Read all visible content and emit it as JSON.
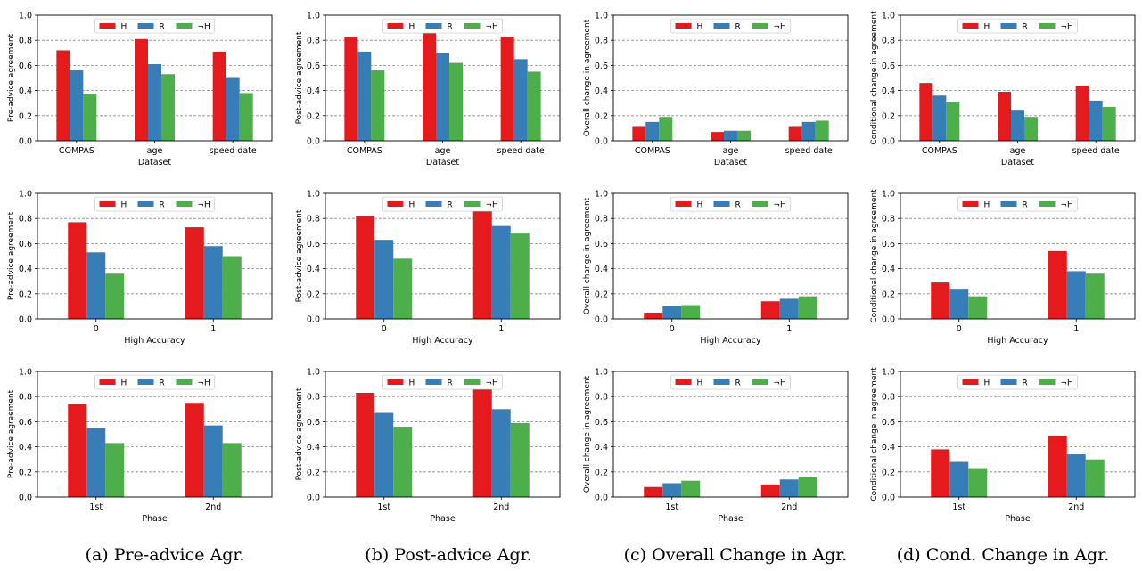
{
  "colors": {
    "H": "#e41a1c",
    "R": "#377eb8",
    "notH": "#4daf4a"
  },
  "legend": [
    "H",
    "R",
    "¬H"
  ],
  "captions": [
    "(a) Pre-advice Agr.",
    "(b) Post-advice Agr.",
    "(c) Overall Change in Agr.",
    "(d) Cond. Change in Agr."
  ],
  "chart_data": [
    {
      "type": "bar",
      "ylabel": "Pre-advice agreement",
      "xlabel": "Dataset",
      "categories": [
        "COMPAS",
        "age",
        "speed date"
      ],
      "ylim": [
        0,
        1
      ],
      "grid": true,
      "legend_position": "top-center",
      "series": [
        {
          "name": "H",
          "values": [
            0.72,
            0.81,
            0.71
          ]
        },
        {
          "name": "R",
          "values": [
            0.56,
            0.61,
            0.5
          ]
        },
        {
          "name": "¬H",
          "values": [
            0.37,
            0.53,
            0.38
          ]
        }
      ]
    },
    {
      "type": "bar",
      "ylabel": "Post-advice agreement",
      "xlabel": "Dataset",
      "categories": [
        "COMPAS",
        "age",
        "speed date"
      ],
      "ylim": [
        0,
        1
      ],
      "grid": true,
      "legend_position": "top-center",
      "series": [
        {
          "name": "H",
          "values": [
            0.83,
            0.88,
            0.83
          ]
        },
        {
          "name": "R",
          "values": [
            0.71,
            0.7,
            0.65
          ]
        },
        {
          "name": "¬H",
          "values": [
            0.56,
            0.62,
            0.55
          ]
        }
      ]
    },
    {
      "type": "bar",
      "ylabel": "Overall change in agreement",
      "xlabel": "Dataset",
      "categories": [
        "COMPAS",
        "age",
        "speed date"
      ],
      "ylim": [
        0,
        1
      ],
      "grid": true,
      "legend_position": "top-center",
      "series": [
        {
          "name": "H",
          "values": [
            0.11,
            0.07,
            0.11
          ]
        },
        {
          "name": "R",
          "values": [
            0.15,
            0.08,
            0.15
          ]
        },
        {
          "name": "¬H",
          "values": [
            0.19,
            0.08,
            0.16
          ]
        }
      ]
    },
    {
      "type": "bar",
      "ylabel": "Conditional change in agreement",
      "xlabel": "Dataset",
      "categories": [
        "COMPAS",
        "age",
        "speed date"
      ],
      "ylim": [
        0,
        1
      ],
      "grid": true,
      "legend_position": "top-center",
      "series": [
        {
          "name": "H",
          "values": [
            0.46,
            0.39,
            0.44
          ]
        },
        {
          "name": "R",
          "values": [
            0.36,
            0.24,
            0.32
          ]
        },
        {
          "name": "¬H",
          "values": [
            0.31,
            0.19,
            0.27
          ]
        }
      ]
    },
    {
      "type": "bar",
      "ylabel": "Pre-advice agreement",
      "xlabel": "High Accuracy",
      "categories": [
        "0",
        "1"
      ],
      "ylim": [
        0,
        1
      ],
      "grid": true,
      "legend_position": "top-center",
      "series": [
        {
          "name": "H",
          "values": [
            0.77,
            0.73
          ]
        },
        {
          "name": "R",
          "values": [
            0.53,
            0.58
          ]
        },
        {
          "name": "¬H",
          "values": [
            0.36,
            0.5
          ]
        }
      ]
    },
    {
      "type": "bar",
      "ylabel": "Post-advice agreement",
      "xlabel": "High Accuracy",
      "categories": [
        "0",
        "1"
      ],
      "ylim": [
        0,
        1
      ],
      "grid": true,
      "legend_position": "top-center",
      "series": [
        {
          "name": "H",
          "values": [
            0.82,
            0.86
          ]
        },
        {
          "name": "R",
          "values": [
            0.63,
            0.74
          ]
        },
        {
          "name": "¬H",
          "values": [
            0.48,
            0.68
          ]
        }
      ]
    },
    {
      "type": "bar",
      "ylabel": "Overall change in agreement",
      "xlabel": "High Accuracy",
      "categories": [
        "0",
        "1"
      ],
      "ylim": [
        0,
        1
      ],
      "grid": true,
      "legend_position": "top-center",
      "series": [
        {
          "name": "H",
          "values": [
            0.05,
            0.14
          ]
        },
        {
          "name": "R",
          "values": [
            0.1,
            0.16
          ]
        },
        {
          "name": "¬H",
          "values": [
            0.11,
            0.18
          ]
        }
      ]
    },
    {
      "type": "bar",
      "ylabel": "Conditional change in agreement",
      "xlabel": "High Accuracy",
      "categories": [
        "0",
        "1"
      ],
      "ylim": [
        0,
        1
      ],
      "grid": true,
      "legend_position": "top-center",
      "series": [
        {
          "name": "H",
          "values": [
            0.29,
            0.54
          ]
        },
        {
          "name": "R",
          "values": [
            0.24,
            0.38
          ]
        },
        {
          "name": "¬H",
          "values": [
            0.18,
            0.36
          ]
        }
      ]
    },
    {
      "type": "bar",
      "ylabel": "Pre-advice agreement",
      "xlabel": "Phase",
      "categories": [
        "1st",
        "2nd"
      ],
      "ylim": [
        0,
        1
      ],
      "grid": true,
      "legend_position": "top-center",
      "series": [
        {
          "name": "H",
          "values": [
            0.74,
            0.75
          ]
        },
        {
          "name": "R",
          "values": [
            0.55,
            0.57
          ]
        },
        {
          "name": "¬H",
          "values": [
            0.43,
            0.43
          ]
        }
      ]
    },
    {
      "type": "bar",
      "ylabel": "Post-advice agreement",
      "xlabel": "Phase",
      "categories": [
        "1st",
        "2nd"
      ],
      "ylim": [
        0,
        1
      ],
      "grid": true,
      "legend_position": "top-center",
      "series": [
        {
          "name": "H",
          "values": [
            0.83,
            0.86
          ]
        },
        {
          "name": "R",
          "values": [
            0.67,
            0.7
          ]
        },
        {
          "name": "¬H",
          "values": [
            0.56,
            0.59
          ]
        }
      ]
    },
    {
      "type": "bar",
      "ylabel": "Overall change in agreement",
      "xlabel": "Phase",
      "categories": [
        "1st",
        "2nd"
      ],
      "ylim": [
        0,
        1
      ],
      "grid": true,
      "legend_position": "top-center",
      "series": [
        {
          "name": "H",
          "values": [
            0.08,
            0.1
          ]
        },
        {
          "name": "R",
          "values": [
            0.11,
            0.14
          ]
        },
        {
          "name": "¬H",
          "values": [
            0.13,
            0.16
          ]
        }
      ]
    },
    {
      "type": "bar",
      "ylabel": "Conditional change in agreement",
      "xlabel": "Phase",
      "categories": [
        "1st",
        "2nd"
      ],
      "ylim": [
        0,
        1
      ],
      "grid": true,
      "legend_position": "top-center",
      "series": [
        {
          "name": "H",
          "values": [
            0.38,
            0.49
          ]
        },
        {
          "name": "R",
          "values": [
            0.28,
            0.34
          ]
        },
        {
          "name": "¬H",
          "values": [
            0.23,
            0.3
          ]
        }
      ]
    }
  ]
}
